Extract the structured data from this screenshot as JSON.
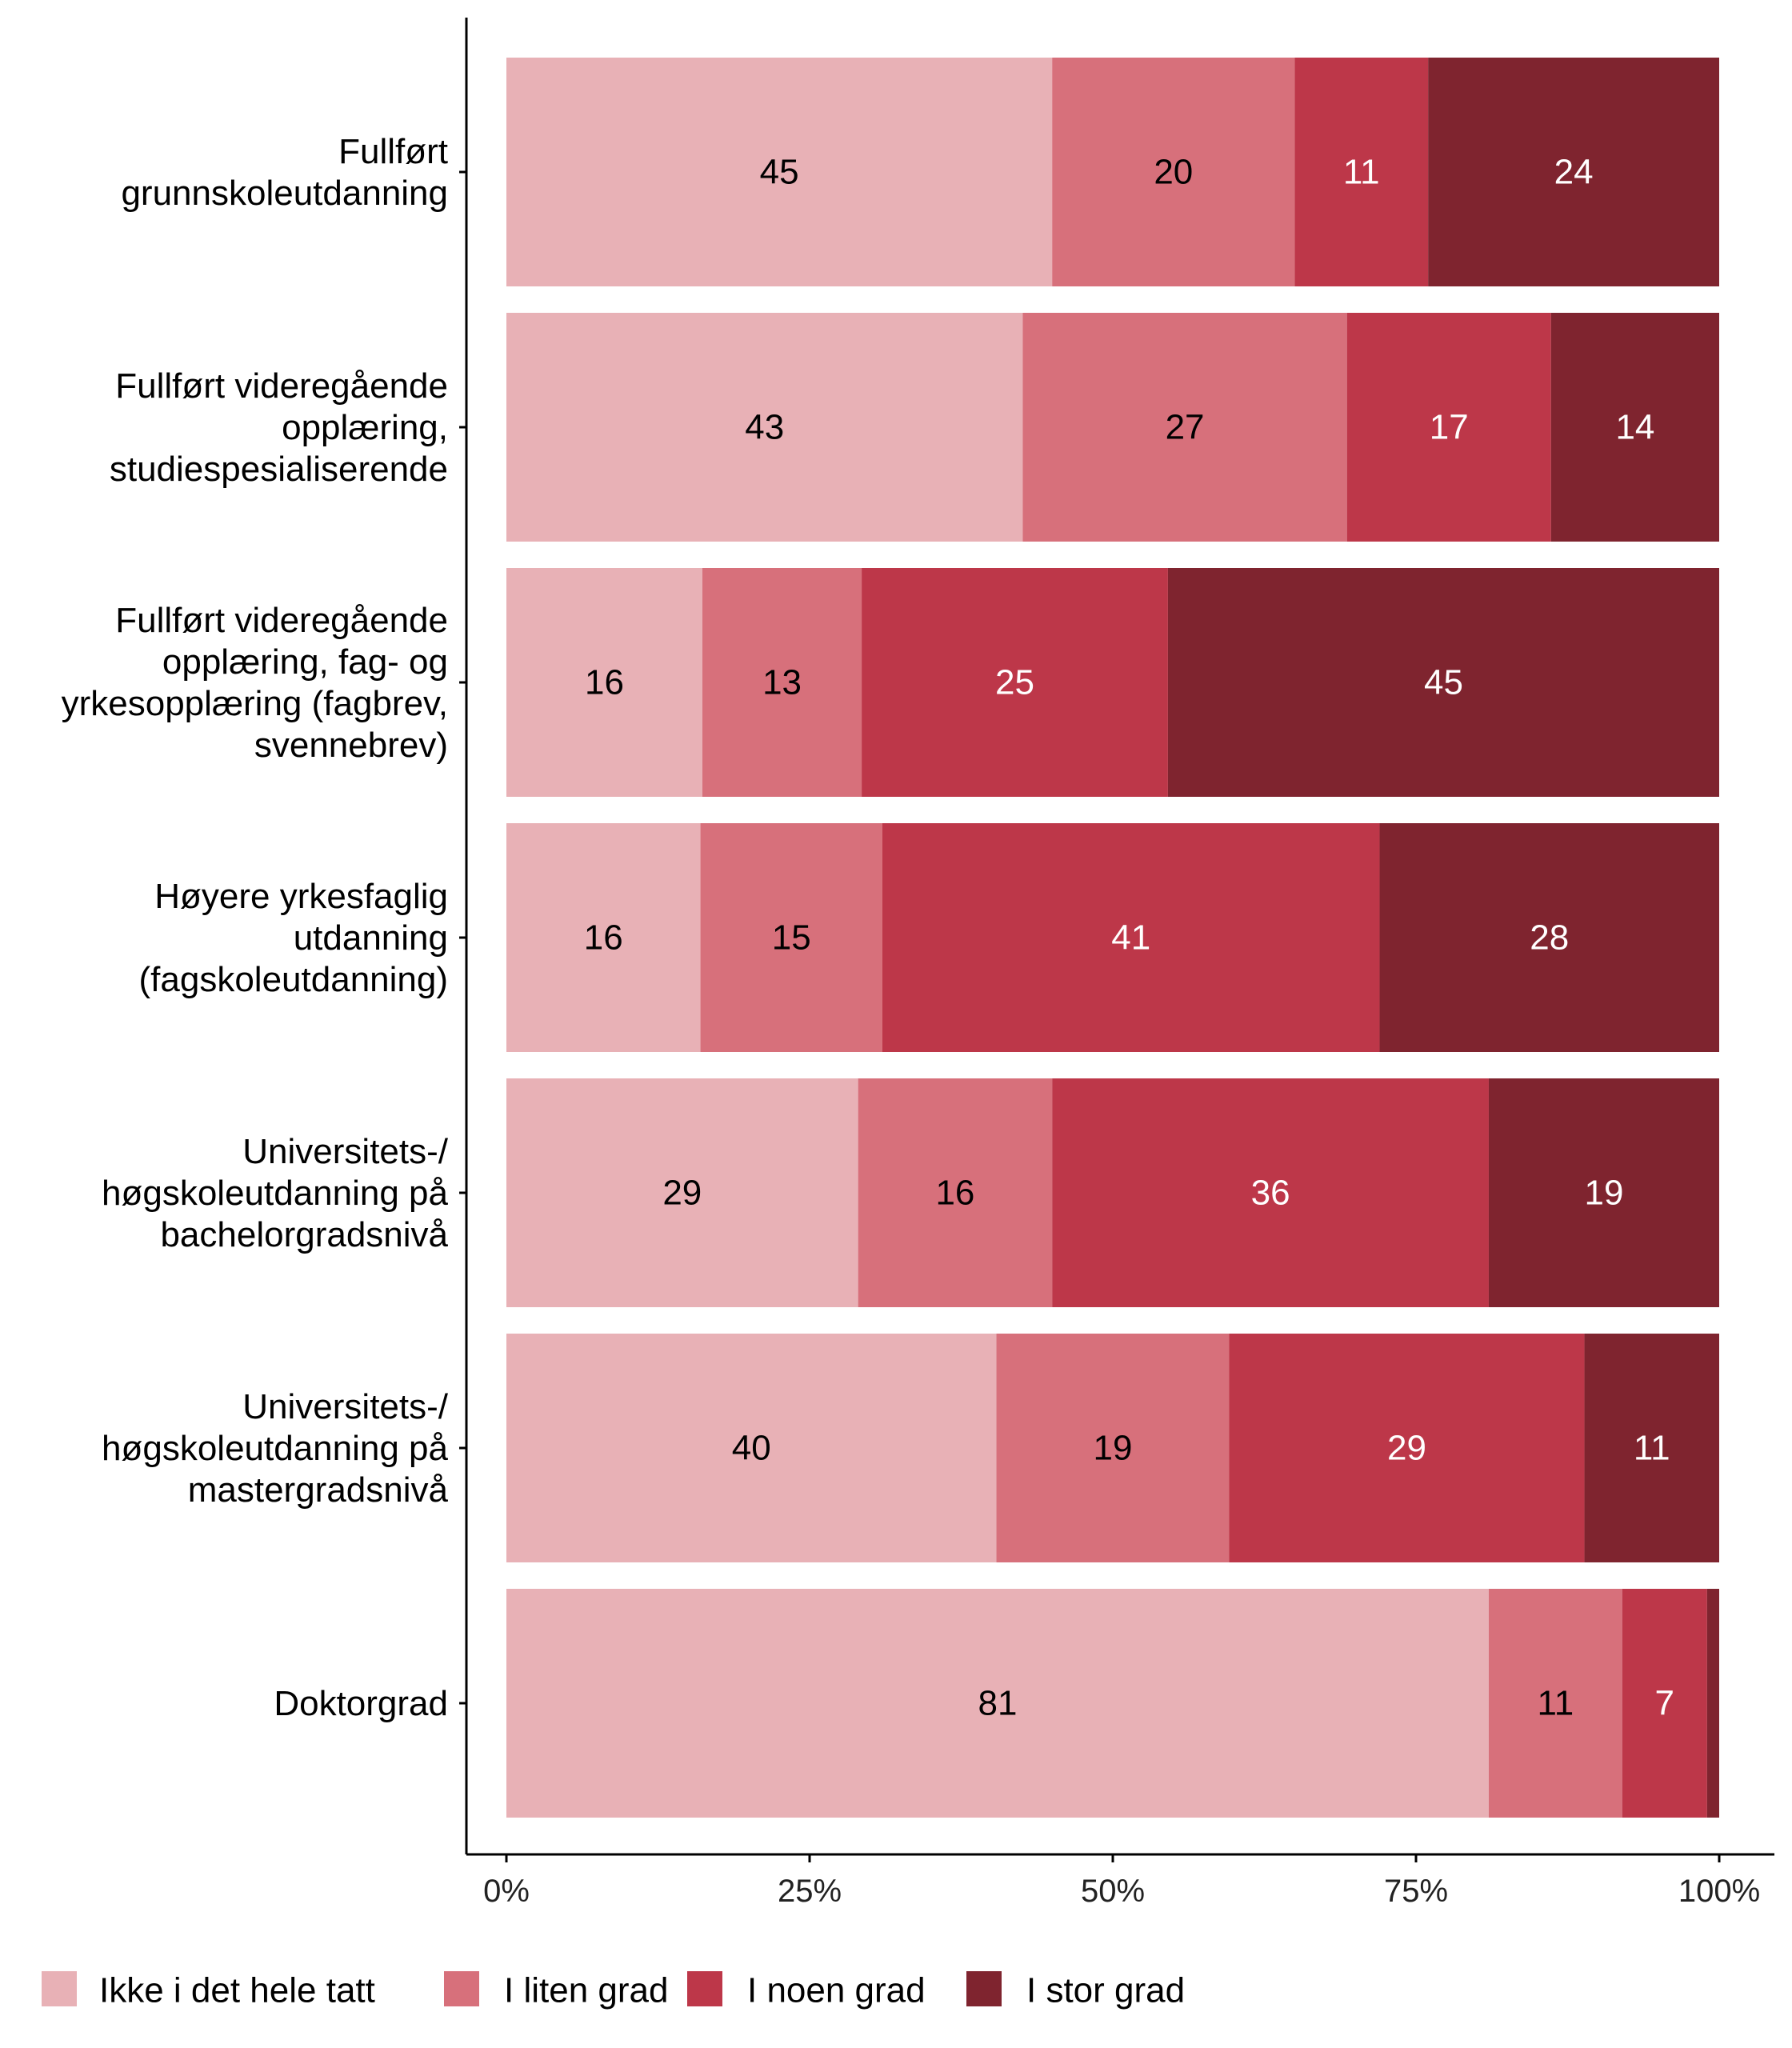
{
  "chart_data": {
    "type": "bar",
    "orientation": "horizontal",
    "stacked": true,
    "title": "",
    "xlabel": "",
    "ylabel": "",
    "xlim": [
      0,
      100
    ],
    "x_ticks": [
      "0%",
      "25%",
      "50%",
      "75%",
      "100%"
    ],
    "grid": false,
    "legend_position": "bottom",
    "categories": [
      [
        "Fullført",
        "grunnskoleutdanning"
      ],
      [
        "Fullført videregående",
        "opplæring,",
        "studiespesialiserende"
      ],
      [
        "Fullført videregående",
        "opplæring, fag- og",
        "yrkesopplæring (fagbrev,",
        "svennebrev)"
      ],
      [
        "Høyere yrkesfaglig",
        "utdanning",
        "(fagskoleutdanning)"
      ],
      [
        "Universitets-/",
        "høgskoleutdanning på",
        "bachelorgradsnivå"
      ],
      [
        "Universitets-/",
        "høgskoleutdanning på",
        "mastergradsnivå"
      ],
      [
        "Doktorgrad"
      ]
    ],
    "series": [
      {
        "name": "Ikke i det hele tatt",
        "color": "#e8b1b6",
        "label_color": "#000000",
        "values": [
          45,
          43,
          16,
          16,
          29,
          40,
          81
        ],
        "labels": [
          "45",
          "43",
          "16",
          "16",
          "29",
          "40",
          "81"
        ]
      },
      {
        "name": "I liten grad",
        "color": "#d7707b",
        "label_color": "#000000",
        "values": [
          20,
          27,
          13,
          15,
          16,
          19,
          11
        ],
        "labels": [
          "20",
          "27",
          "13",
          "15",
          "16",
          "19",
          "11"
        ]
      },
      {
        "name": "I noen grad",
        "color": "#bd3749",
        "label_color": "#ffffff",
        "values": [
          11,
          17,
          25,
          41,
          36,
          29,
          7
        ],
        "labels": [
          "11",
          "17",
          "25",
          "41",
          "36",
          "29",
          "7"
        ]
      },
      {
        "name": "I stor grad",
        "color": "#7f242f",
        "label_color": "#ffffff",
        "values": [
          24,
          14,
          45,
          28,
          19,
          11,
          1
        ],
        "labels": [
          "24",
          "14",
          "45",
          "28",
          "19",
          "11",
          ""
        ]
      }
    ]
  }
}
